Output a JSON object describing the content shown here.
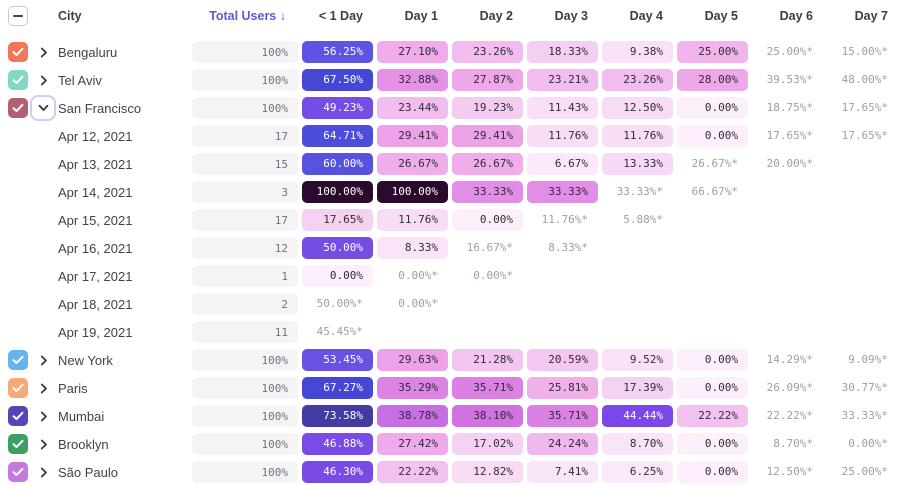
{
  "table": {
    "header": {
      "select_all_state": "indeterminate",
      "city_label": "City",
      "total_users_label": "Total Users",
      "sort_arrow": "↓",
      "day_columns": [
        "< 1 Day",
        "Day 1",
        "Day 2",
        "Day 3",
        "Day 4",
        "Day 5",
        "Day 6",
        "Day 7"
      ]
    },
    "rows": [
      {
        "kind": "city",
        "label": "Bengaluru",
        "checked": true,
        "checkbox_color": "#f2765c",
        "expanded": false,
        "total": "100%",
        "cells": [
          "56.25%",
          "27.10%",
          "23.26%",
          "18.33%",
          "9.38%",
          "25.00%",
          "25.00%*",
          "15.00%*"
        ]
      },
      {
        "kind": "city",
        "label": "Tel Aviv",
        "checked": true,
        "checkbox_color": "#82d7c6",
        "expanded": false,
        "total": "100%",
        "cells": [
          "67.50%",
          "32.88%",
          "27.87%",
          "23.21%",
          "23.26%",
          "28.00%",
          "39.53%*",
          "48.00%*"
        ]
      },
      {
        "kind": "city",
        "label": "San Francisco",
        "checked": true,
        "checkbox_color": "#b25f72",
        "expanded": true,
        "total": "100%",
        "cells": [
          "49.23%",
          "23.44%",
          "19.23%",
          "11.43%",
          "12.50%",
          "0.00%",
          "18.75%*",
          "17.65%*"
        ]
      },
      {
        "kind": "date",
        "label": "Apr 12, 2021",
        "total": "17",
        "cells": [
          "64.71%",
          "29.41%",
          "29.41%",
          "11.76%",
          "11.76%",
          "0.00%",
          "17.65%*",
          "17.65%*"
        ]
      },
      {
        "kind": "date",
        "label": "Apr 13, 2021",
        "total": "15",
        "cells": [
          "60.00%",
          "26.67%",
          "26.67%",
          "6.67%",
          "13.33%",
          "26.67%*",
          "20.00%*",
          null
        ]
      },
      {
        "kind": "date",
        "label": "Apr 14, 2021",
        "total": "3",
        "cells": [
          "100.00%",
          "100.00%",
          "33.33%",
          "33.33%",
          "33.33%*",
          "66.67%*",
          null,
          null
        ]
      },
      {
        "kind": "date",
        "label": "Apr 15, 2021",
        "total": "17",
        "cells": [
          "17.65%",
          "11.76%",
          "0.00%",
          "11.76%*",
          "5.88%*",
          null,
          null,
          null
        ]
      },
      {
        "kind": "date",
        "label": "Apr 16, 2021",
        "total": "12",
        "cells": [
          "50.00%",
          "8.33%",
          "16.67%*",
          "8.33%*",
          null,
          null,
          null,
          null
        ]
      },
      {
        "kind": "date",
        "label": "Apr 17, 2021",
        "total": "1",
        "cells": [
          "0.00%",
          "0.00%*",
          "0.00%*",
          null,
          null,
          null,
          null,
          null
        ]
      },
      {
        "kind": "date",
        "label": "Apr 18, 2021",
        "total": "2",
        "cells": [
          "50.00%*",
          "0.00%*",
          null,
          null,
          null,
          null,
          null,
          null
        ]
      },
      {
        "kind": "date",
        "label": "Apr 19, 2021",
        "total": "11",
        "cells": [
          "45.45%*",
          null,
          null,
          null,
          null,
          null,
          null,
          null
        ]
      },
      {
        "kind": "city",
        "label": "New York",
        "checked": true,
        "checkbox_color": "#64b5ef",
        "expanded": false,
        "total": "100%",
        "cells": [
          "53.45%",
          "29.63%",
          "21.28%",
          "20.59%",
          "9.52%",
          "0.00%",
          "14.29%*",
          "9.09%*"
        ]
      },
      {
        "kind": "city",
        "label": "Paris",
        "checked": true,
        "checkbox_color": "#f7aa77",
        "expanded": false,
        "total": "100%",
        "cells": [
          "67.27%",
          "35.29%",
          "35.71%",
          "25.81%",
          "17.39%",
          "0.00%",
          "26.09%*",
          "30.77%*"
        ]
      },
      {
        "kind": "city",
        "label": "Mumbai",
        "checked": true,
        "checkbox_color": "#5347b8",
        "expanded": false,
        "total": "100%",
        "cells": [
          "73.58%",
          "38.78%",
          "38.10%",
          "35.71%",
          "44.44%",
          "22.22%",
          "22.22%*",
          "33.33%*"
        ]
      },
      {
        "kind": "city",
        "label": "Brooklyn",
        "checked": true,
        "checkbox_color": "#3f9e63",
        "expanded": false,
        "total": "100%",
        "cells": [
          "46.88%",
          "27.42%",
          "17.02%",
          "24.24%",
          "8.70%",
          "0.00%",
          "8.70%*",
          "0.00%*"
        ]
      },
      {
        "kind": "city",
        "label": "São Paulo",
        "checked": true,
        "checkbox_color": "#c678dd",
        "expanded": false,
        "total": "100%",
        "cells": [
          "46.30%",
          "22.22%",
          "12.82%",
          "7.41%",
          "6.25%",
          "0.00%",
          "12.50%*",
          "25.00%*"
        ]
      }
    ],
    "colors": {
      "accent_sort": "#5a5be0",
      "header_text": "#3a3e45",
      "label_text": "#3f434b",
      "total_cell_bg": "#f4f4f6",
      "total_cell_text": "#6e737d",
      "estimate_text": "#9aa0a9",
      "cell_text_dark": "#322b3a",
      "cell_text_light": "#ffffff",
      "focus_ring": "#d3cbf5",
      "checkbox_border": "#c7cbd1"
    },
    "heatmap_stops": [
      [
        0,
        "#fdf0fc"
      ],
      [
        6,
        "#fbe9fa"
      ],
      [
        12,
        "#f8ddf6"
      ],
      [
        18,
        "#f5d0f2"
      ],
      [
        22,
        "#f3c2ef"
      ],
      [
        26,
        "#f0b0eb"
      ],
      [
        30,
        "#ec9fe8"
      ],
      [
        34,
        "#e18be5"
      ],
      [
        38,
        "#d174e1"
      ],
      [
        41,
        "#a75ee6"
      ],
      [
        44,
        "#7a48e8"
      ],
      [
        48,
        "#7a4ce4"
      ],
      [
        53,
        "#6a51e3"
      ],
      [
        57,
        "#5b53e2"
      ],
      [
        61,
        "#5751e0"
      ],
      [
        65,
        "#4c4cdb"
      ],
      [
        68,
        "#4546d4"
      ],
      [
        74,
        "#423a9d"
      ],
      [
        84,
        "#35215e"
      ],
      [
        100,
        "#2a0b2e"
      ]
    ]
  }
}
